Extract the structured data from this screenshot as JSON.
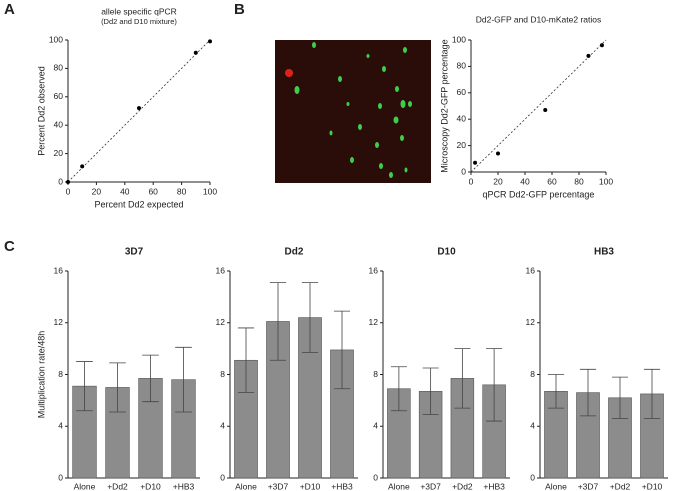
{
  "panels": [
    "A",
    "B",
    "C"
  ],
  "chart_data": [
    {
      "type": "scatter",
      "title": "allele specific qPCR",
      "subtitle": "(Dd2 and D10 mixture)",
      "x_label": "Percent Dd2 expected",
      "y_label": "Percent Dd2 observed",
      "x": [
        0,
        10,
        50,
        90,
        100
      ],
      "y": [
        0,
        11,
        52,
        91,
        99
      ],
      "color": "#000000",
      "xlim": [
        0,
        100
      ],
      "ylim": [
        0,
        100
      ],
      "xticks": [
        0,
        20,
        40,
        60,
        80,
        100
      ],
      "yticks": [
        0,
        20,
        40,
        60,
        80,
        100
      ]
    },
    {
      "type": "scatter",
      "title": "Dd2-GFP and D10-mKate2 ratios",
      "x_label": "qPCR Dd2-GFP percentage",
      "y_label": "Microscopy Dd2-GFP percentage",
      "x": [
        3,
        20,
        55,
        87,
        97
      ],
      "y": [
        7,
        14,
        47,
        88,
        96
      ],
      "color": "#000000",
      "xlim": [
        0,
        100
      ],
      "ylim": [
        0,
        100
      ],
      "xticks": [
        0,
        20,
        40,
        60,
        80,
        100
      ],
      "yticks": [
        0,
        20,
        40,
        60,
        80,
        100
      ]
    },
    {
      "type": "bar",
      "title": "3D7",
      "y_label": "Multiplication rate/48h",
      "categories": [
        "Alone",
        "+Dd2",
        "+D10",
        "+HB3"
      ],
      "values": [
        7.1,
        7.0,
        7.7,
        7.6
      ],
      "errors": [
        1.9,
        1.9,
        1.8,
        2.5
      ],
      "color": "#8c8c8c",
      "ylim": [
        0,
        16
      ],
      "yticks": [
        0,
        4,
        8,
        12,
        16
      ]
    },
    {
      "type": "bar",
      "title": "Dd2",
      "categories": [
        "Alone",
        "+3D7",
        "+D10",
        "+HB3"
      ],
      "values": [
        9.1,
        12.1,
        12.4,
        9.9
      ],
      "errors": [
        2.5,
        3.0,
        2.7,
        3.0
      ],
      "color": "#8c8c8c",
      "ylim": [
        0,
        16
      ],
      "yticks": [
        0,
        4,
        8,
        12,
        16
      ]
    },
    {
      "type": "bar",
      "title": "D10",
      "categories": [
        "Alone",
        "+3D7",
        "+Dd2",
        "+HB3"
      ],
      "values": [
        6.9,
        6.7,
        7.7,
        7.2
      ],
      "errors": [
        1.7,
        1.8,
        2.3,
        2.8
      ],
      "color": "#8c8c8c",
      "ylim": [
        0,
        16
      ],
      "yticks": [
        0,
        4,
        8,
        12,
        16
      ]
    },
    {
      "type": "bar",
      "title": "HB3",
      "categories": [
        "Alone",
        "+3D7",
        "+Dd2",
        "+D10"
      ],
      "values": [
        6.7,
        6.6,
        6.2,
        6.5
      ],
      "errors": [
        1.3,
        1.8,
        1.6,
        1.9
      ],
      "color": "#8c8c8c",
      "ylim": [
        0,
        16
      ],
      "yticks": [
        0,
        4,
        8,
        12,
        16
      ]
    }
  ]
}
